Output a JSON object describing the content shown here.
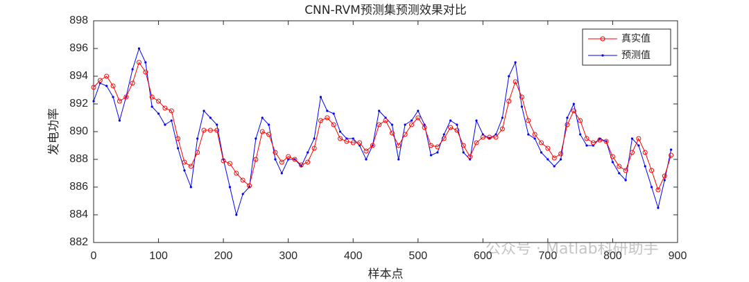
{
  "chart_data": {
    "type": "line",
    "title": "CNN-RVM预测集预测效果对比",
    "xlabel": "样本点",
    "ylabel": "发电功率",
    "watermark": "公众号 · Matlab科研助手",
    "x": [
      0,
      10,
      20,
      30,
      40,
      50,
      60,
      70,
      80,
      90,
      100,
      110,
      120,
      130,
      140,
      150,
      160,
      170,
      180,
      190,
      200,
      210,
      220,
      230,
      240,
      250,
      260,
      270,
      280,
      290,
      300,
      310,
      320,
      330,
      340,
      350,
      360,
      370,
      380,
      390,
      400,
      410,
      420,
      430,
      440,
      450,
      460,
      470,
      480,
      490,
      500,
      510,
      520,
      530,
      540,
      550,
      560,
      570,
      580,
      590,
      600,
      610,
      620,
      630,
      640,
      650,
      660,
      670,
      680,
      690,
      700,
      710,
      720,
      730,
      740,
      750,
      760,
      770,
      780,
      790,
      800,
      810,
      820,
      830,
      840,
      850,
      860,
      870,
      880,
      890
    ],
    "series": [
      {
        "name": "真实值",
        "color": "#ff0000",
        "marker": "circle",
        "values": [
          893.2,
          893.7,
          894.0,
          893.3,
          892.2,
          892.5,
          893.5,
          895.0,
          894.3,
          892.5,
          892.2,
          891.7,
          891.5,
          889.5,
          887.8,
          887.5,
          888.5,
          890.1,
          890.1,
          890.1,
          887.9,
          887.7,
          887.0,
          886.5,
          886.1,
          888.0,
          890.0,
          889.8,
          888.5,
          887.8,
          888.2,
          888.0,
          887.6,
          887.8,
          888.8,
          890.8,
          891.0,
          890.5,
          889.5,
          889.3,
          889.2,
          889.2,
          888.6,
          889.0,
          890.5,
          890.8,
          889.9,
          889.0,
          889.8,
          890.5,
          891.0,
          890.3,
          889.0,
          888.9,
          889.5,
          890.3,
          890.1,
          889.0,
          888.2,
          889.2,
          889.6,
          889.6,
          889.6,
          890.2,
          892.2,
          893.6,
          892.5,
          890.8,
          889.8,
          889.2,
          888.8,
          888.1,
          888.4,
          890.5,
          891.5,
          890.8,
          889.5,
          889.2,
          889.4,
          889.3,
          888.2,
          887.5,
          887.2,
          888.5,
          889.5,
          888.5,
          887.2,
          885.8,
          886.8,
          888.3
        ]
      },
      {
        "name": "预测值",
        "color": "#0000ff",
        "marker": "dot",
        "values": [
          892.2,
          893.5,
          893.3,
          892.5,
          890.8,
          892.5,
          894.5,
          896.0,
          895.0,
          891.8,
          891.3,
          890.5,
          890.8,
          888.8,
          887.2,
          886.0,
          889.5,
          891.5,
          891.0,
          890.5,
          888.0,
          886.0,
          884.0,
          885.5,
          886.0,
          889.5,
          891.0,
          890.5,
          888.0,
          887.0,
          888.0,
          888.0,
          887.5,
          888.5,
          889.5,
          892.5,
          891.5,
          891.3,
          890.0,
          889.5,
          889.5,
          889.0,
          888.0,
          889.0,
          891.5,
          891.0,
          890.5,
          888.0,
          890.5,
          890.8,
          891.5,
          890.5,
          888.3,
          888.5,
          889.8,
          890.8,
          890.5,
          888.5,
          888.0,
          890.8,
          889.8,
          889.5,
          889.8,
          891.0,
          894.0,
          895.0,
          891.8,
          889.8,
          889.5,
          888.5,
          888.0,
          887.5,
          888.0,
          891.0,
          892.0,
          889.8,
          889.0,
          889.0,
          889.5,
          889.3,
          887.8,
          887.0,
          886.5,
          889.5,
          889.0,
          887.5,
          886.0,
          884.5,
          886.5,
          888.7
        ]
      }
    ],
    "xlim": [
      0,
      900
    ],
    "xticks": [
      0,
      100,
      200,
      300,
      400,
      500,
      600,
      700,
      800,
      900
    ],
    "ylim": [
      882,
      898
    ],
    "yticks": [
      882,
      884,
      886,
      888,
      890,
      892,
      894,
      896,
      898
    ],
    "grid": false,
    "legend": "upper right"
  }
}
